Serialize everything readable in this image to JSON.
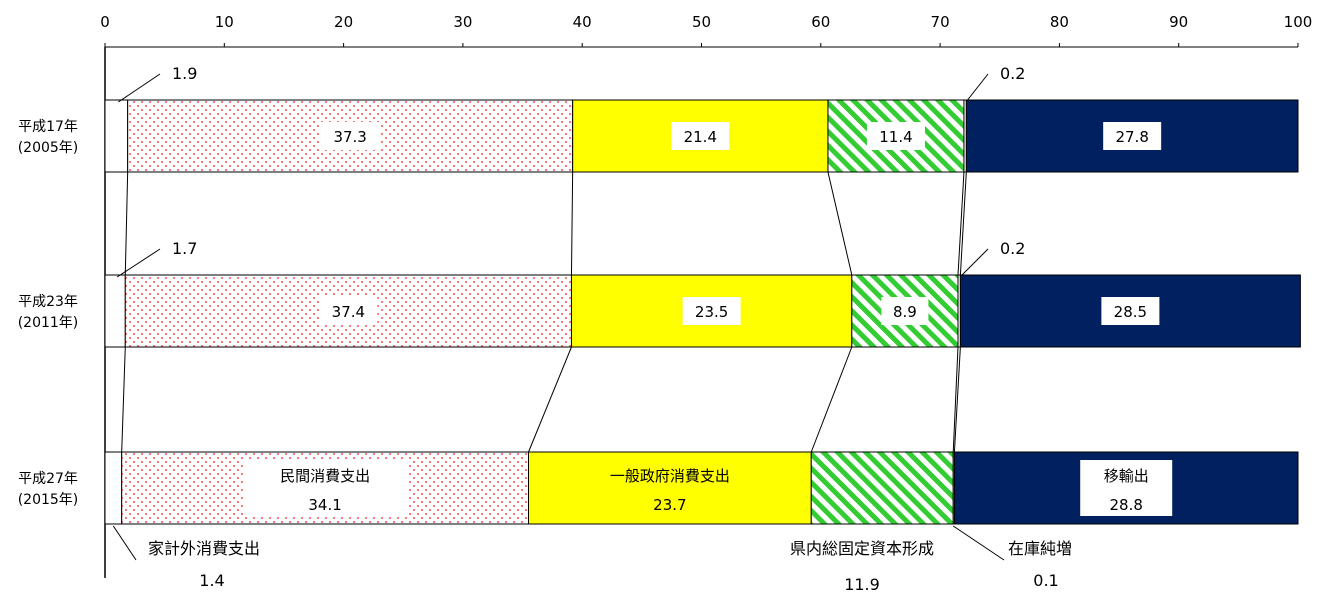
{
  "chart_data": {
    "type": "bar",
    "orientation": "horizontal",
    "stacked": true,
    "xlim": [
      0,
      100
    ],
    "xticks": [
      0,
      10,
      20,
      30,
      40,
      50,
      60,
      70,
      80,
      90,
      100
    ],
    "categories": [
      {
        "line1": "平成17年",
        "line2": "(2005年)"
      },
      {
        "line1": "平成23年",
        "line2": "(2011年)"
      },
      {
        "line1": "平成27年",
        "line2": "(2015年)"
      }
    ],
    "series": [
      {
        "name": "家計外消費支出",
        "values": [
          1.9,
          1.7,
          1.4
        ],
        "labels": [
          "1.9",
          "1.7",
          "1.4"
        ],
        "color": "#ffffff",
        "pattern": "none"
      },
      {
        "name": "民間消費支出",
        "values": [
          37.3,
          37.4,
          34.1
        ],
        "labels": [
          "37.3",
          "37.4",
          "34.1"
        ],
        "color": "#ff5a5a",
        "pattern": "dots"
      },
      {
        "name": "一般政府消費支出",
        "values": [
          21.4,
          23.5,
          23.7
        ],
        "labels": [
          "21.4",
          "23.5",
          "23.7"
        ],
        "color": "#ffff00",
        "pattern": "solid"
      },
      {
        "name": "県内総固定資本形成",
        "values": [
          11.4,
          8.9,
          11.9
        ],
        "labels": [
          "11.4",
          "8.9",
          "11.9"
        ],
        "color": "#33cc33",
        "pattern": "stripes"
      },
      {
        "name": "在庫純増",
        "values": [
          0.2,
          0.2,
          0.1
        ],
        "labels": [
          "0.2",
          "0.2",
          "0.1"
        ],
        "color": "#ffffff",
        "pattern": "none"
      },
      {
        "name": "移輸出",
        "values": [
          27.8,
          28.5,
          28.8
        ],
        "labels": [
          "27.8",
          "28.5",
          "28.8"
        ],
        "color": "#002060",
        "pattern": "solid"
      }
    ]
  }
}
